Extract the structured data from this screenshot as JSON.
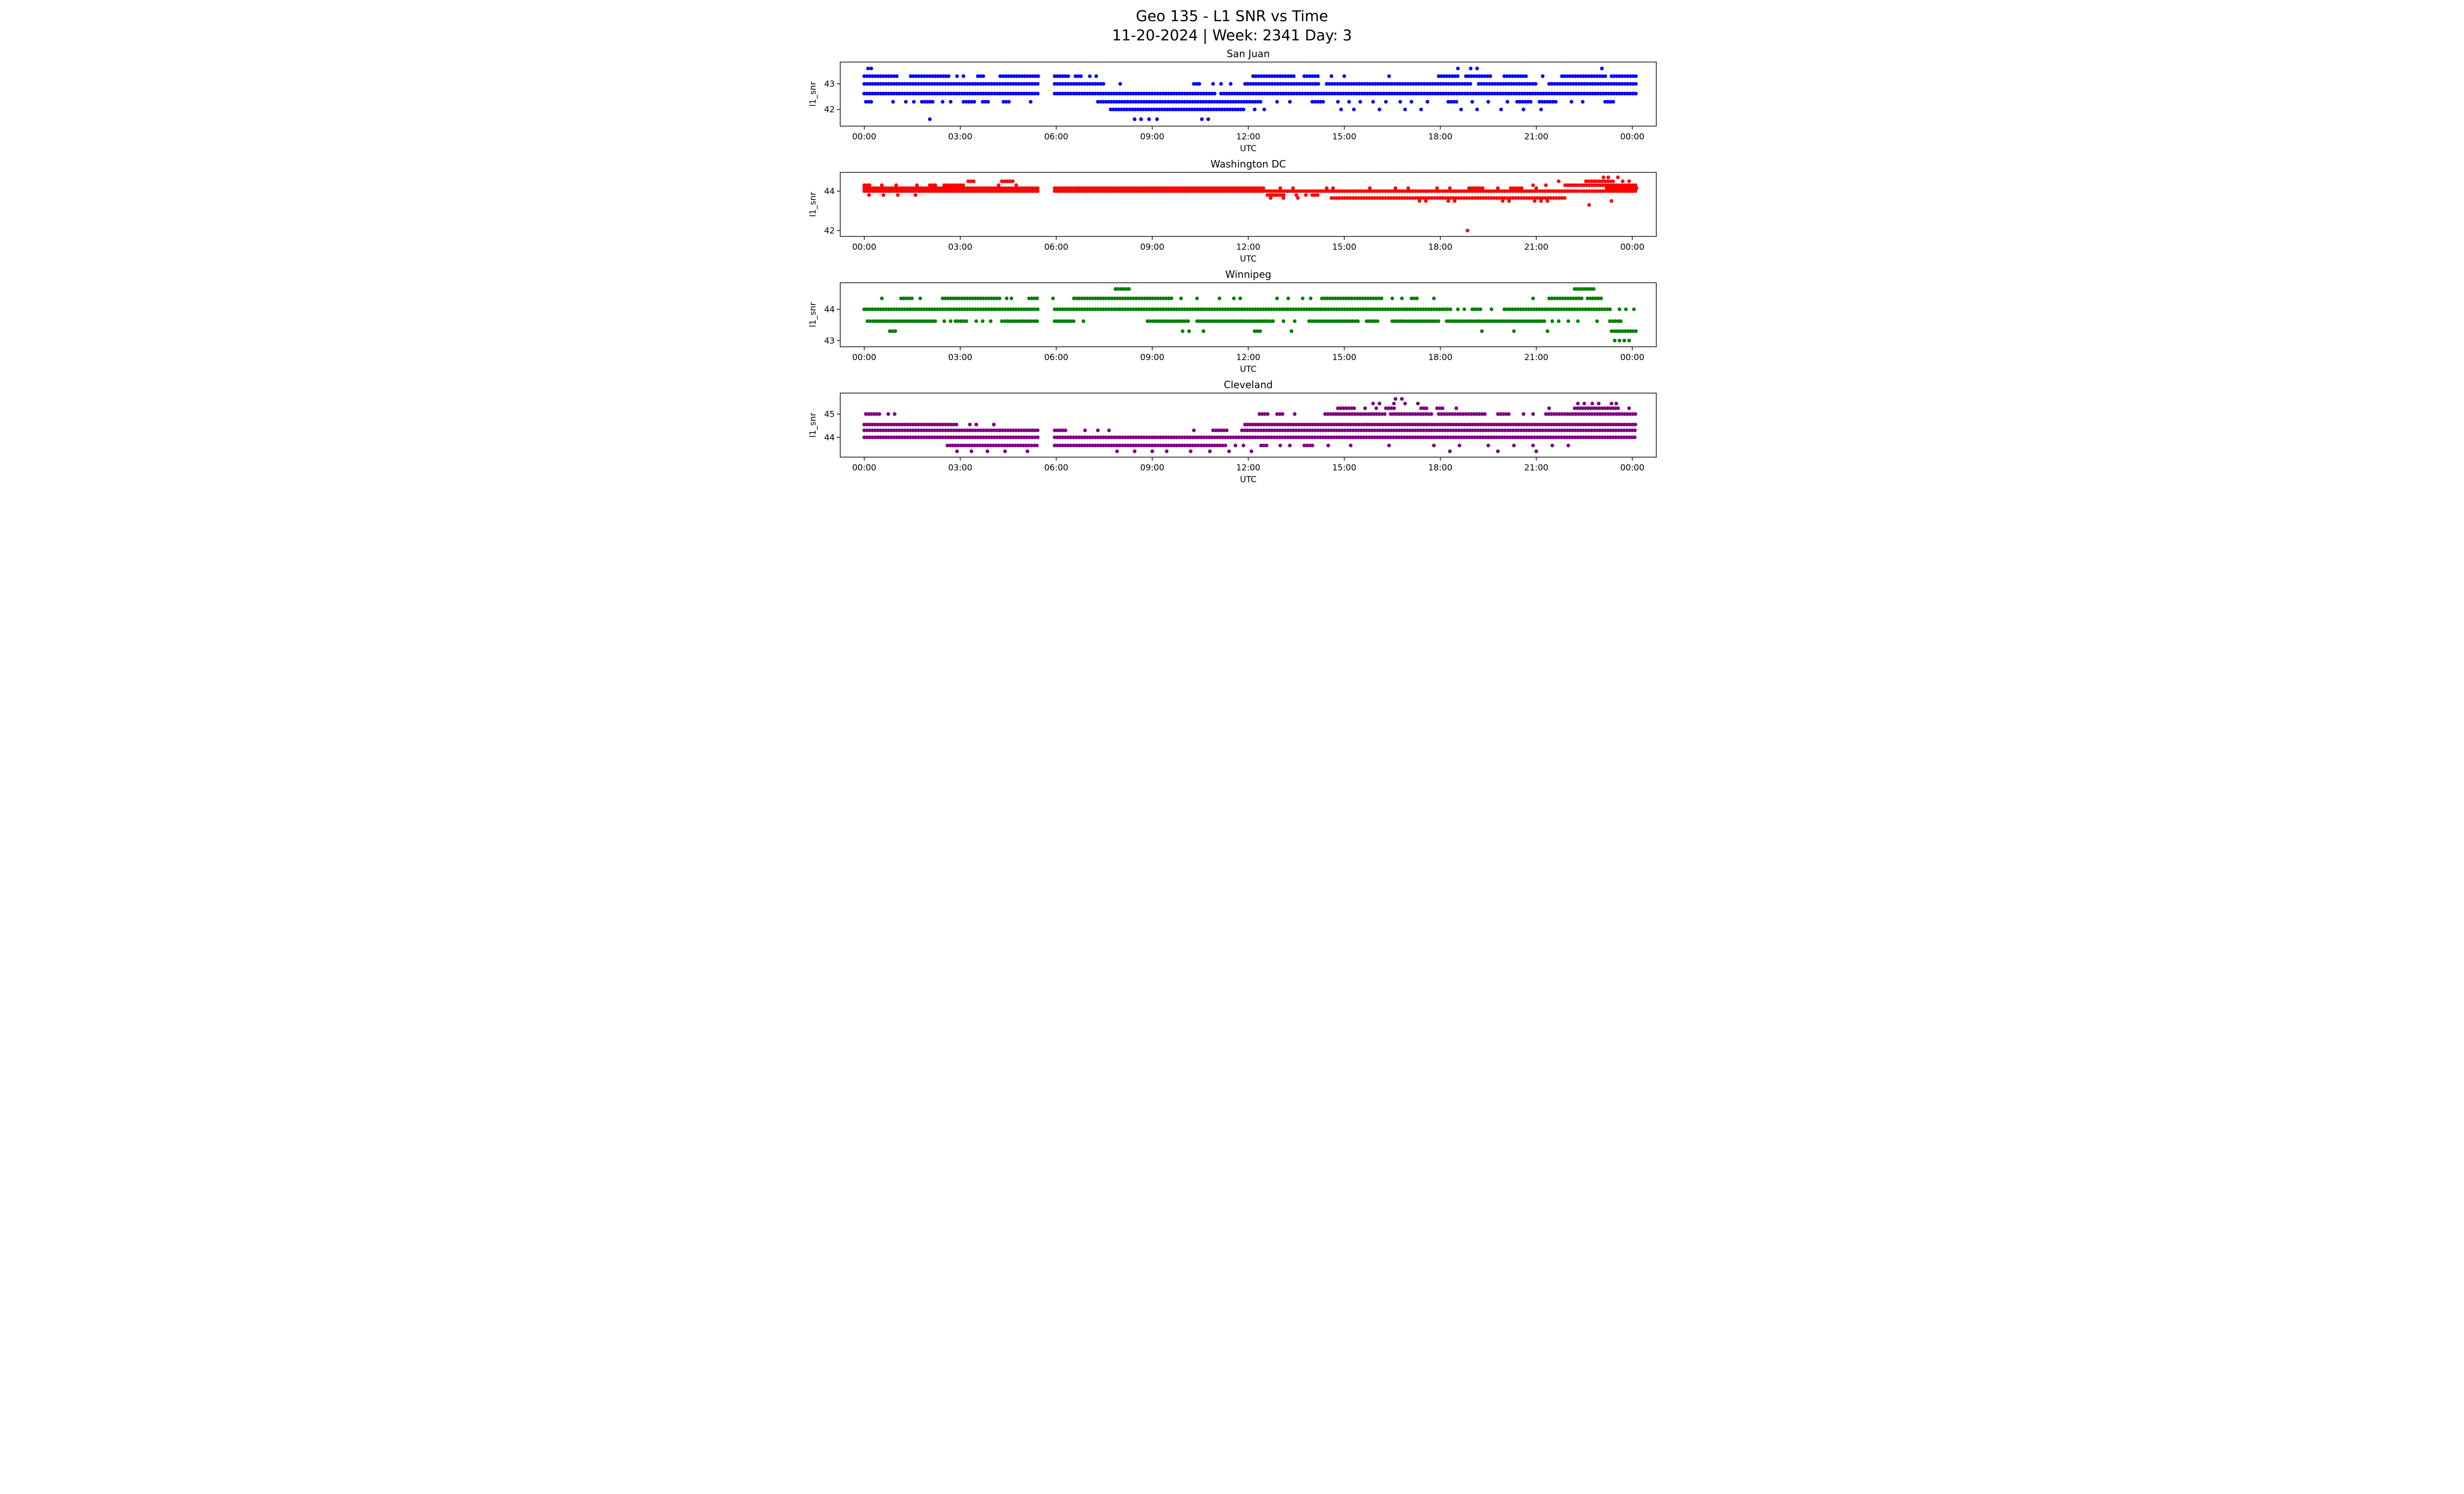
{
  "header": {
    "title": "Geo 135 - L1 SNR vs Time",
    "subtitle": "11-20-2024 | Week: 2341 Day: 3"
  },
  "chart_data": [
    {
      "type": "scatter",
      "title": "San Juan",
      "color": "#0000ff",
      "xlabel": "UTC",
      "ylabel": "l1_snr",
      "xlim": [
        -0.75,
        24.75
      ],
      "ylim": [
        41.35,
        43.85
      ],
      "x_tick_hours": [
        0,
        3,
        6,
        9,
        12,
        15,
        18,
        21,
        24
      ],
      "x_tick_labels": [
        "00:00",
        "03:00",
        "06:00",
        "09:00",
        "12:00",
        "15:00",
        "18:00",
        "21:00",
        "00:00"
      ],
      "y_ticks": [
        42,
        43
      ],
      "grid": false,
      "legend": "none",
      "bands": [
        {
          "y": 43.6,
          "segments": [],
          "dots": [
            0.12,
            0.22,
            18.55,
            18.95,
            19.15,
            23.05
          ]
        },
        {
          "y": 43.3,
          "segments": [
            [
              0.0,
              1.05
            ],
            [
              1.45,
              2.65
            ],
            [
              3.55,
              3.75
            ],
            [
              4.25,
              5.45
            ],
            [
              5.95,
              6.45
            ],
            [
              6.6,
              6.85
            ],
            [
              12.15,
              13.45
            ],
            [
              13.75,
              14.2
            ],
            [
              17.95,
              18.6
            ],
            [
              18.8,
              19.6
            ],
            [
              20.0,
              20.75
            ],
            [
              21.8,
              23.2
            ],
            [
              23.35,
              24.15
            ]
          ],
          "dots": [
            2.9,
            3.1,
            7.05,
            7.25,
            14.6,
            15.0,
            16.4,
            21.2
          ]
        },
        {
          "y": 43.0,
          "segments": [
            [
              0.0,
              5.45
            ],
            [
              5.95,
              7.55
            ],
            [
              10.3,
              10.55
            ],
            [
              11.9,
              14.25
            ],
            [
              14.45,
              19.0
            ],
            [
              19.2,
              21.0
            ],
            [
              21.4,
              24.15
            ]
          ],
          "dots": [
            8.0,
            10.9,
            11.15,
            11.45
          ]
        },
        {
          "y": 42.62,
          "segments": [
            [
              0.0,
              5.45
            ],
            [
              5.95,
              11.0
            ],
            [
              11.15,
              24.15
            ]
          ],
          "dots": []
        },
        {
          "y": 42.3,
          "segments": [
            [
              0.05,
              0.25
            ],
            [
              1.8,
              2.15
            ],
            [
              3.1,
              3.5
            ],
            [
              3.7,
              3.95
            ],
            [
              4.35,
              4.6
            ],
            [
              7.3,
              12.45
            ],
            [
              14.0,
              14.35
            ],
            [
              18.25,
              18.55
            ],
            [
              20.4,
              20.9
            ],
            [
              21.1,
              21.65
            ],
            [
              23.15,
              23.45
            ]
          ],
          "dots": [
            0.9,
            1.3,
            1.55,
            2.45,
            2.7,
            5.2,
            12.9,
            13.3,
            14.8,
            15.15,
            15.5,
            15.9,
            16.3,
            16.75,
            17.1,
            17.6,
            19.0,
            19.5,
            20.1,
            22.1,
            22.45
          ]
        },
        {
          "y": 42.0,
          "segments": [
            [
              7.7,
              11.9
            ]
          ],
          "dots": [
            12.2,
            12.5,
            14.9,
            15.3,
            16.1,
            16.9,
            17.4,
            18.65,
            19.15,
            19.9,
            20.6,
            21.15
          ]
        },
        {
          "y": 41.62,
          "segments": [],
          "dots": [
            2.05,
            8.45,
            8.65,
            8.9,
            9.15,
            10.55,
            10.75
          ]
        }
      ]
    },
    {
      "type": "scatter",
      "title": "Washington DC",
      "color": "#ff0000",
      "xlabel": "UTC",
      "ylabel": "l1_snr",
      "xlim": [
        -0.75,
        24.75
      ],
      "ylim": [
        41.7,
        44.95
      ],
      "x_tick_hours": [
        0,
        3,
        6,
        9,
        12,
        15,
        18,
        21,
        24
      ],
      "x_tick_labels": [
        "00:00",
        "03:00",
        "06:00",
        "09:00",
        "12:00",
        "15:00",
        "18:00",
        "21:00",
        "00:00"
      ],
      "y_ticks": [
        42,
        44
      ],
      "grid": false,
      "legend": "none",
      "bands": [
        {
          "y": 44.7,
          "segments": [],
          "dots": [
            23.1,
            23.25,
            23.55
          ]
        },
        {
          "y": 44.5,
          "segments": [
            [
              3.25,
              3.5
            ],
            [
              4.3,
              4.65
            ],
            [
              22.55,
              23.45
            ]
          ],
          "dots": [
            21.7,
            23.7,
            23.9
          ]
        },
        {
          "y": 44.3,
          "segments": [
            [
              0.0,
              0.2
            ],
            [
              2.05,
              2.3
            ],
            [
              2.5,
              3.1
            ],
            [
              21.9,
              24.15
            ]
          ],
          "dots": [
            0.55,
            1.0,
            1.65,
            4.2,
            4.75,
            20.9,
            21.3
          ]
        },
        {
          "y": 44.15,
          "segments": [
            [
              0.0,
              5.45
            ],
            [
              5.95,
              12.55
            ],
            [
              18.9,
              19.35
            ],
            [
              20.2,
              20.55
            ],
            [
              23.2,
              24.15
            ]
          ],
          "dots": [
            13.0,
            13.4,
            14.45,
            14.65,
            15.8,
            16.6,
            17.0,
            17.9,
            18.3,
            19.8,
            21.0
          ]
        },
        {
          "y": 44.0,
          "segments": [
            [
              0.0,
              5.45
            ],
            [
              5.95,
              22.3
            ],
            [
              22.4,
              24.15
            ]
          ],
          "dots": []
        },
        {
          "y": 43.8,
          "segments": [
            [
              12.6,
              13.15
            ],
            [
              14.0,
              14.25
            ]
          ],
          "dots": [
            0.15,
            0.6,
            1.05,
            1.6,
            13.5,
            13.8
          ]
        },
        {
          "y": 43.65,
          "segments": [
            [
              14.6,
              21.95
            ]
          ],
          "dots": [
            12.7,
            13.1,
            13.55
          ]
        },
        {
          "y": 43.5,
          "segments": [],
          "dots": [
            17.35,
            17.55,
            18.25,
            18.45,
            19.95,
            20.15,
            20.95,
            21.15,
            21.35,
            23.35
          ]
        },
        {
          "y": 43.3,
          "segments": [],
          "dots": [
            22.65
          ]
        },
        {
          "y": 42.0,
          "segments": [],
          "dots": [
            18.85
          ]
        }
      ]
    },
    {
      "type": "scatter",
      "title": "Winnipeg",
      "color": "#008000",
      "xlabel": "UTC",
      "ylabel": "l1_snr",
      "xlim": [
        -0.75,
        24.75
      ],
      "ylim": [
        42.8,
        44.85
      ],
      "x_tick_hours": [
        0,
        3,
        6,
        9,
        12,
        15,
        18,
        21,
        24
      ],
      "x_tick_labels": [
        "00:00",
        "03:00",
        "06:00",
        "09:00",
        "12:00",
        "15:00",
        "18:00",
        "21:00",
        "00:00"
      ],
      "y_ticks": [
        43,
        44
      ],
      "grid": false,
      "legend": "none",
      "bands": [
        {
          "y": 44.65,
          "segments": [
            [
              7.85,
              8.3
            ],
            [
              22.2,
              22.8
            ]
          ],
          "dots": []
        },
        {
          "y": 44.35,
          "segments": [
            [
              1.15,
              1.5
            ],
            [
              2.45,
              4.3
            ],
            [
              5.15,
              5.45
            ],
            [
              6.55,
              9.6
            ],
            [
              14.3,
              16.2
            ],
            [
              17.1,
              17.35
            ],
            [
              21.4,
              22.5
            ],
            [
              22.6,
              23.05
            ]
          ],
          "dots": [
            0.55,
            1.75,
            4.45,
            4.6,
            5.9,
            9.9,
            10.4,
            11.1,
            11.55,
            11.75,
            12.9,
            13.25,
            13.7,
            13.95,
            16.5,
            16.8,
            17.8,
            20.9
          ]
        },
        {
          "y": 44.0,
          "segments": [
            [
              0.0,
              5.45
            ],
            [
              5.95,
              18.35
            ],
            [
              19.0,
              19.3
            ],
            [
              20.0,
              23.35
            ]
          ],
          "dots": [
            18.55,
            18.75,
            19.6,
            23.6,
            23.8,
            24.05
          ]
        },
        {
          "y": 43.62,
          "segments": [
            [
              0.1,
              2.3
            ],
            [
              2.85,
              3.25
            ],
            [
              4.3,
              5.45
            ],
            [
              5.95,
              6.55
            ],
            [
              8.85,
              10.2
            ],
            [
              10.4,
              12.8
            ],
            [
              13.9,
              15.45
            ],
            [
              15.7,
              16.1
            ],
            [
              16.5,
              18.0
            ],
            [
              18.2,
              21.3
            ],
            [
              23.3,
              23.65
            ]
          ],
          "dots": [
            2.5,
            2.7,
            3.5,
            3.7,
            3.95,
            6.85,
            13.1,
            13.45,
            21.5,
            21.7,
            22.0,
            22.3,
            22.9
          ]
        },
        {
          "y": 43.3,
          "segments": [
            [
              0.8,
              1.05
            ],
            [
              12.2,
              12.45
            ],
            [
              23.35,
              24.15
            ]
          ],
          "dots": [
            9.95,
            10.15,
            10.6,
            13.35,
            19.3,
            20.3,
            21.35
          ]
        },
        {
          "y": 43.0,
          "segments": [],
          "dots": [
            23.45,
            23.6,
            23.75,
            23.9
          ]
        }
      ]
    },
    {
      "type": "scatter",
      "title": "Cleveland",
      "color": "#800080",
      "xlabel": "UTC",
      "ylabel": "l1_snr",
      "xlim": [
        -0.75,
        24.75
      ],
      "ylim": [
        43.15,
        45.9
      ],
      "x_tick_hours": [
        0,
        3,
        6,
        9,
        12,
        15,
        18,
        21,
        24
      ],
      "x_tick_labels": [
        "00:00",
        "03:00",
        "06:00",
        "09:00",
        "12:00",
        "15:00",
        "18:00",
        "21:00",
        "00:00"
      ],
      "y_ticks": [
        44,
        45
      ],
      "grid": false,
      "legend": "none",
      "bands": [
        {
          "y": 45.65,
          "segments": [],
          "dots": [
            16.6,
            16.8
          ]
        },
        {
          "y": 45.45,
          "segments": [],
          "dots": [
            15.9,
            16.1,
            16.55,
            16.9,
            17.3,
            22.3,
            22.5,
            22.75,
            22.95,
            23.35,
            23.5
          ]
        },
        {
          "y": 45.25,
          "segments": [
            [
              14.8,
              15.35
            ],
            [
              16.3,
              16.6
            ],
            [
              17.4,
              17.65
            ],
            [
              17.9,
              18.15
            ],
            [
              22.2,
              23.6
            ]
          ],
          "dots": [
            15.65,
            16.0,
            18.5,
            21.4,
            23.9
          ]
        },
        {
          "y": 45.0,
          "segments": [
            [
              0.05,
              0.5
            ],
            [
              12.35,
              12.65
            ],
            [
              12.9,
              13.15
            ],
            [
              14.4,
              16.3
            ],
            [
              16.45,
              17.8
            ],
            [
              17.95,
              19.4
            ],
            [
              19.8,
              20.15
            ],
            [
              21.3,
              24.15
            ]
          ],
          "dots": [
            0.75,
            0.95,
            13.45,
            20.6,
            20.9
          ]
        },
        {
          "y": 44.55,
          "segments": [
            [
              0.0,
              2.95
            ],
            [
              11.9,
              24.15
            ]
          ],
          "dots": [
            3.3,
            3.5,
            4.05
          ]
        },
        {
          "y": 44.3,
          "segments": [
            [
              0.0,
              5.45
            ],
            [
              5.95,
              6.3
            ],
            [
              10.9,
              11.35
            ],
            [
              11.8,
              24.15
            ]
          ],
          "dots": [
            6.9,
            7.3,
            7.65,
            10.3
          ]
        },
        {
          "y": 44.0,
          "segments": [
            [
              0.0,
              5.45
            ],
            [
              5.95,
              24.15
            ]
          ],
          "dots": []
        },
        {
          "y": 43.65,
          "segments": [
            [
              2.6,
              5.45
            ],
            [
              5.95,
              11.3
            ],
            [
              12.4,
              12.65
            ],
            [
              13.75,
              14.05
            ]
          ],
          "dots": [
            11.6,
            11.85,
            13.0,
            13.3,
            14.5,
            15.2,
            16.4,
            17.8,
            18.6,
            19.5,
            20.3,
            20.9,
            21.5,
            22.0
          ]
        },
        {
          "y": 43.4,
          "segments": [],
          "dots": [
            2.9,
            3.35,
            3.85,
            4.4,
            5.1,
            7.9,
            8.45,
            9.0,
            9.45,
            10.2,
            10.8,
            11.4,
            12.1,
            18.3,
            19.8,
            21.0
          ]
        }
      ]
    }
  ]
}
